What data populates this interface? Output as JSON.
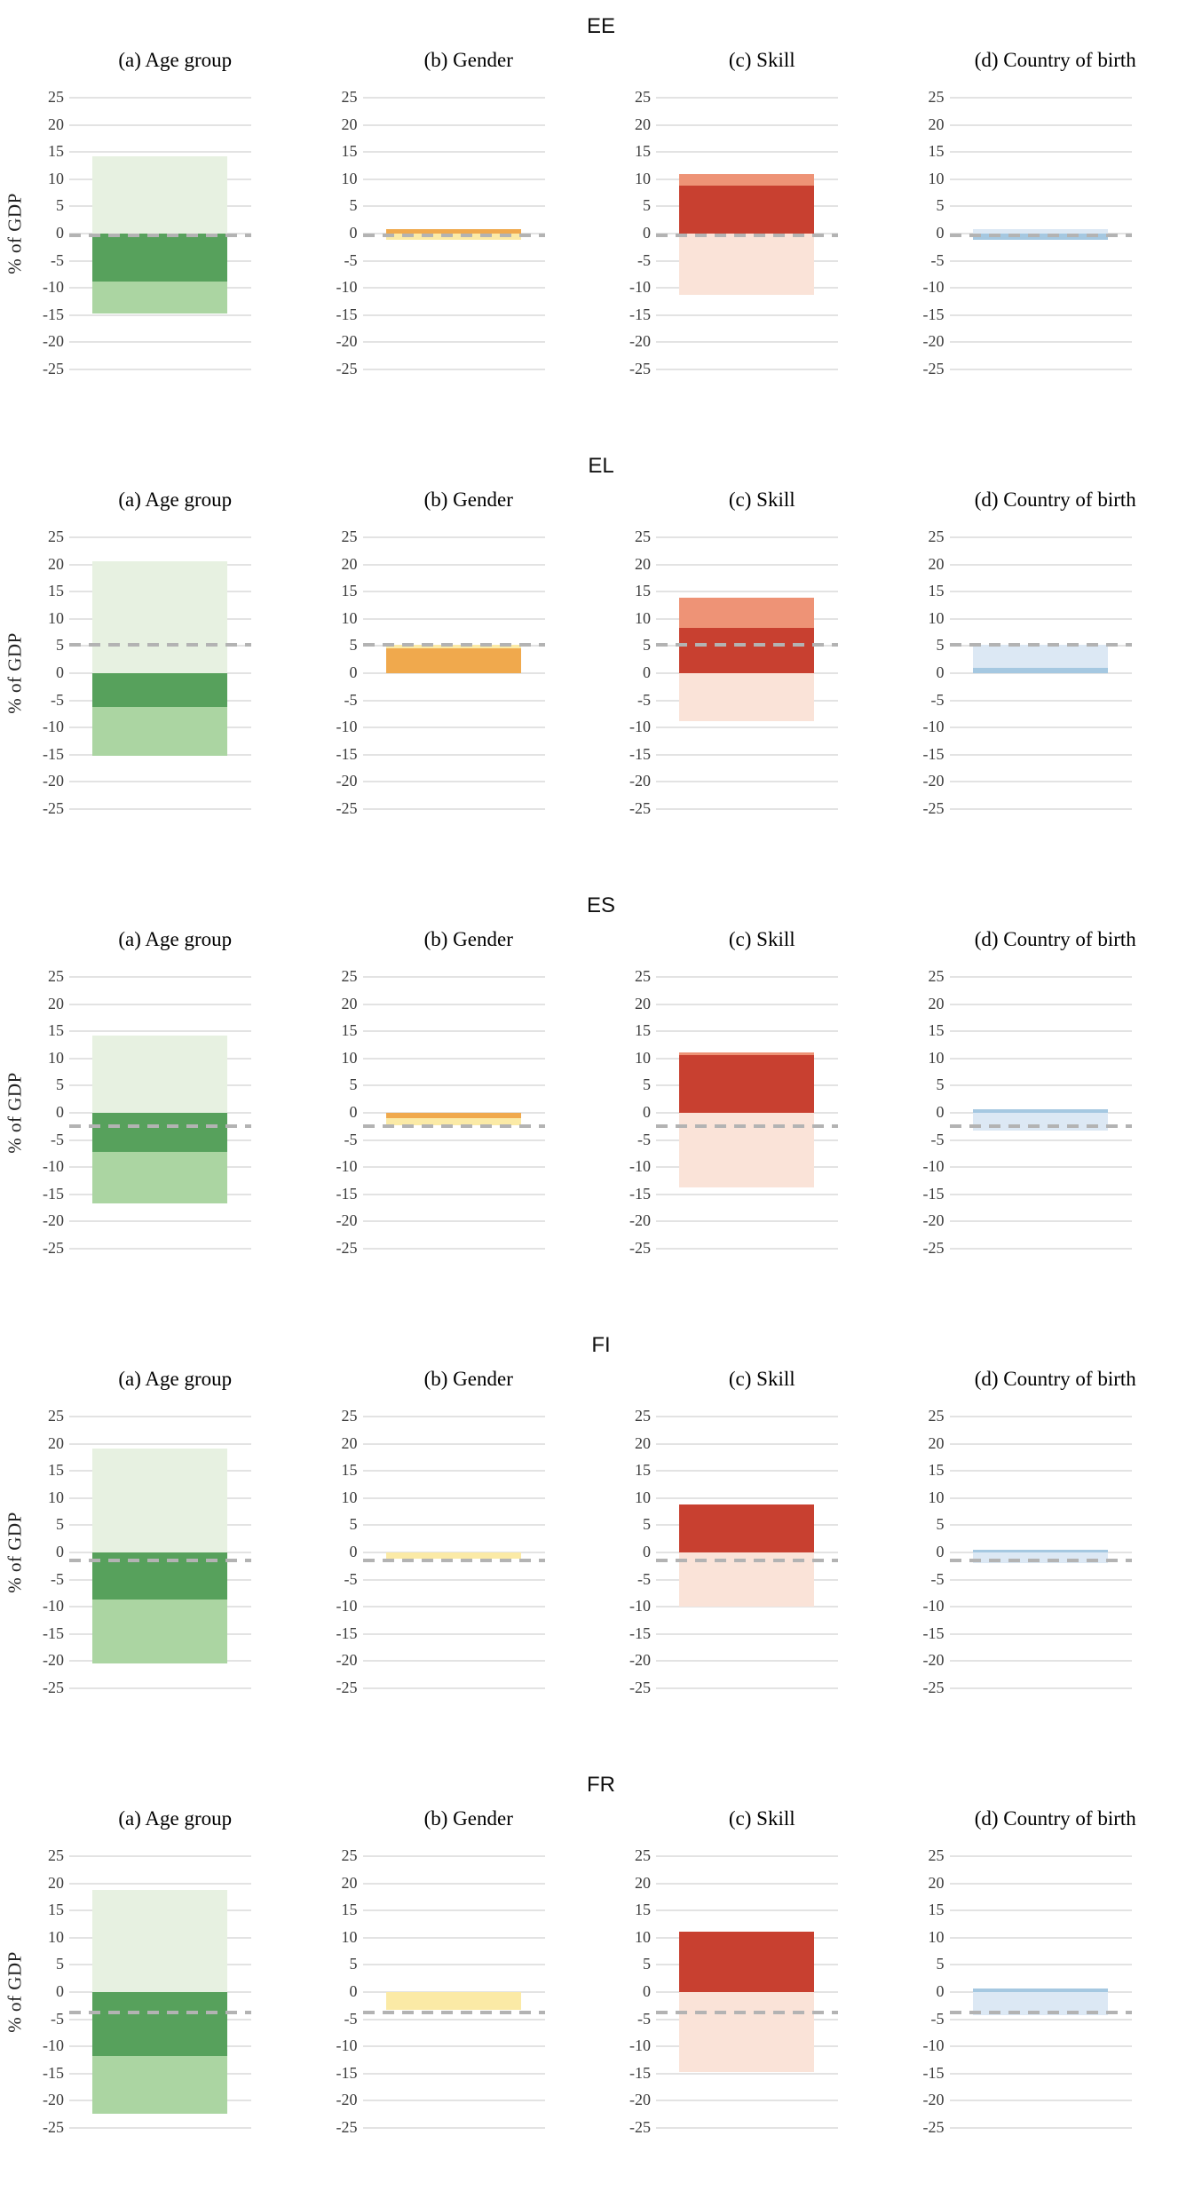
{
  "chart_data": {
    "type": "bar",
    "ylabel": "% of GDP",
    "yticks": [
      25,
      20,
      15,
      10,
      5,
      0,
      -5,
      -10,
      -15,
      -20,
      -25
    ],
    "ylim": [
      -25,
      25
    ],
    "plot_range": [
      -27,
      27
    ],
    "grid": true,
    "legend": "none",
    "panels": [
      {
        "key": "age",
        "label": "(a) Age group"
      },
      {
        "key": "gender",
        "label": "(b) Gender"
      },
      {
        "key": "skill",
        "label": "(c) Skill"
      },
      {
        "key": "birth",
        "label": "(d) Country of birth"
      }
    ],
    "colors": {
      "age": {
        "light_green": "#e7f1e1",
        "dark_green": "#57a15c",
        "medium_green": "#abd5a2"
      },
      "gender": {
        "orange": "#f0a94d",
        "pale_yellow": "#fbeaa6"
      },
      "skill": {
        "salmon": "#ee9376",
        "dark_red": "#c84030",
        "pale_pink": "#fae3d8"
      },
      "birth": {
        "medium_blue": "#a5c8e1",
        "pale_blue": "#dce8f4"
      }
    },
    "style": {
      "gridline_color": "#e3e3e3",
      "dashed_line_color": "#b3b3b3",
      "tick_text_color": "#3c3c3c"
    },
    "rows": [
      {
        "country": "EE",
        "net": -0.4,
        "segments": {
          "age": [
            {
              "color": "light_green",
              "from": 0,
              "to": 14.3
            },
            {
              "color": "dark_green",
              "from": -8.8,
              "to": 0
            },
            {
              "color": "medium_green",
              "from": -14.7,
              "to": -8.8
            }
          ],
          "gender": [
            {
              "color": "orange",
              "from": 0,
              "to": 0.8
            },
            {
              "color": "pale_yellow",
              "from": -1.2,
              "to": 0
            }
          ],
          "skill": [
            {
              "color": "salmon",
              "from": 8.8,
              "to": 11.0
            },
            {
              "color": "dark_red",
              "from": 0,
              "to": 8.8
            },
            {
              "color": "pale_pink",
              "from": -11.3,
              "to": 0
            }
          ],
          "birth": [
            {
              "color": "pale_blue",
              "from": 0,
              "to": 0.8
            },
            {
              "color": "medium_blue",
              "from": -1.2,
              "to": 0
            }
          ]
        }
      },
      {
        "country": "EL",
        "net": 5.3,
        "segments": {
          "age": [
            {
              "color": "light_green",
              "from": 0,
              "to": 20.7
            },
            {
              "color": "dark_green",
              "from": -6.2,
              "to": 0
            },
            {
              "color": "medium_green",
              "from": -15.3,
              "to": -6.2
            }
          ],
          "gender": [
            {
              "color": "orange",
              "from": 0,
              "to": 4.6
            },
            {
              "color": "pale_yellow",
              "from": 4.6,
              "to": 5.3
            }
          ],
          "skill": [
            {
              "color": "salmon",
              "from": 8.3,
              "to": 13.9
            },
            {
              "color": "dark_red",
              "from": 0,
              "to": 8.3
            },
            {
              "color": "pale_pink",
              "from": -8.8,
              "to": 0
            }
          ],
          "birth": [
            {
              "color": "pale_blue",
              "from": 1.0,
              "to": 5.2
            },
            {
              "color": "medium_blue",
              "from": 0,
              "to": 1.0
            }
          ]
        }
      },
      {
        "country": "ES",
        "net": -2.5,
        "segments": {
          "age": [
            {
              "color": "light_green",
              "from": 0,
              "to": 14.3
            },
            {
              "color": "dark_green",
              "from": -7.2,
              "to": 0
            },
            {
              "color": "medium_green",
              "from": -16.7,
              "to": -7.2
            }
          ],
          "gender": [
            {
              "color": "orange",
              "from": -1.0,
              "to": 0
            },
            {
              "color": "pale_yellow",
              "from": -2.3,
              "to": -1.0
            }
          ],
          "skill": [
            {
              "color": "salmon",
              "from": 10.6,
              "to": 11.2
            },
            {
              "color": "dark_red",
              "from": 0,
              "to": 10.6
            },
            {
              "color": "pale_pink",
              "from": -13.8,
              "to": 0
            }
          ],
          "birth": [
            {
              "color": "medium_blue",
              "from": 0,
              "to": 0.7
            },
            {
              "color": "pale_blue",
              "from": -3.2,
              "to": 0
            }
          ]
        }
      },
      {
        "country": "FI",
        "net": -1.4,
        "segments": {
          "age": [
            {
              "color": "light_green",
              "from": 0,
              "to": 19.2
            },
            {
              "color": "dark_green",
              "from": -8.7,
              "to": 0
            },
            {
              "color": "medium_green",
              "from": -20.4,
              "to": -8.7
            }
          ],
          "gender": [
            {
              "color": "pale_yellow",
              "from": -1.1,
              "to": 0
            }
          ],
          "skill": [
            {
              "color": "dark_red",
              "from": 0,
              "to": 8.8
            },
            {
              "color": "pale_pink",
              "from": -10.0,
              "to": 0
            }
          ],
          "birth": [
            {
              "color": "medium_blue",
              "from": 0,
              "to": 0.5
            },
            {
              "color": "pale_blue",
              "from": -1.9,
              "to": 0
            }
          ]
        }
      },
      {
        "country": "FR",
        "net": -3.7,
        "segments": {
          "age": [
            {
              "color": "light_green",
              "from": 0,
              "to": 18.9
            },
            {
              "color": "dark_green",
              "from": -11.8,
              "to": 0
            },
            {
              "color": "medium_green",
              "from": -22.4,
              "to": -11.8
            }
          ],
          "gender": [
            {
              "color": "pale_yellow",
              "from": -3.3,
              "to": 0
            }
          ],
          "skill": [
            {
              "color": "dark_red",
              "from": 0,
              "to": 11.1
            },
            {
              "color": "pale_pink",
              "from": -14.8,
              "to": 0
            }
          ],
          "birth": [
            {
              "color": "medium_blue",
              "from": 0,
              "to": 0.6
            },
            {
              "color": "pale_blue",
              "from": -4.2,
              "to": 0
            }
          ]
        }
      }
    ]
  }
}
